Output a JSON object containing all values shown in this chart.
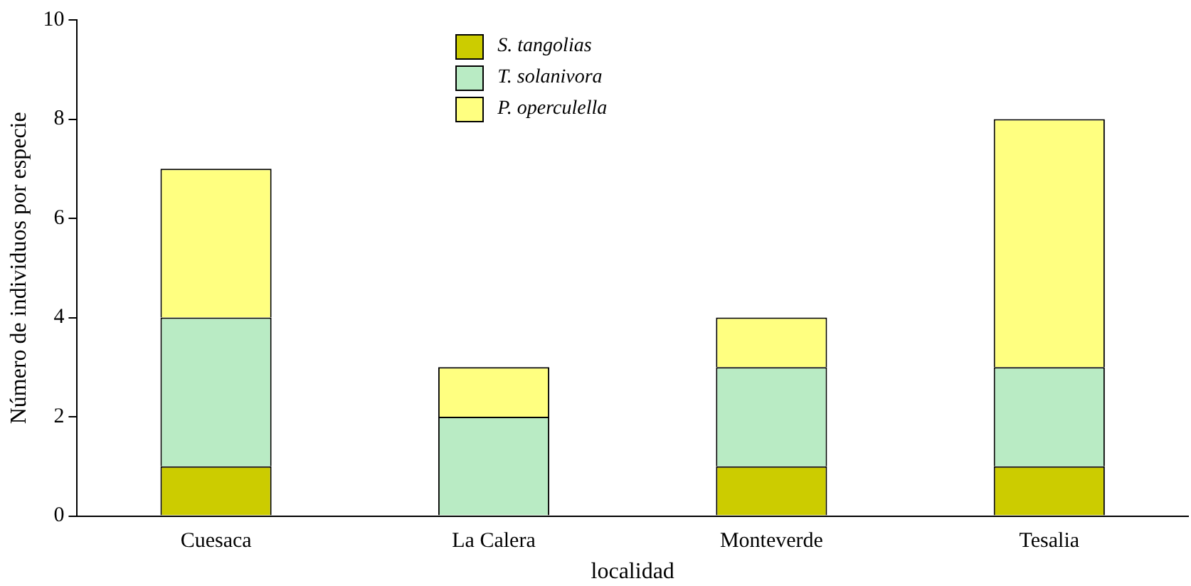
{
  "chart_data": {
    "type": "bar",
    "stacked": true,
    "xlabel": "localidad",
    "ylabel": "Número de individuos por especie",
    "categories": [
      "Cuesaca",
      "La Calera",
      "Monteverde",
      "Tesalia"
    ],
    "series": [
      {
        "name": "S. tangolias",
        "color": "#cccc00",
        "values": [
          1,
          0,
          1,
          1
        ]
      },
      {
        "name": "T. solanivora",
        "color": "#b9ebc4",
        "values": [
          3,
          2,
          2,
          2
        ]
      },
      {
        "name": "P. operculella",
        "color": "#ffff80",
        "values": [
          3,
          1,
          1,
          5
        ]
      }
    ],
    "ylim": [
      0,
      10
    ],
    "yticks": [
      0,
      2,
      4,
      6,
      8,
      10
    ],
    "grid": false,
    "legend": "top"
  }
}
